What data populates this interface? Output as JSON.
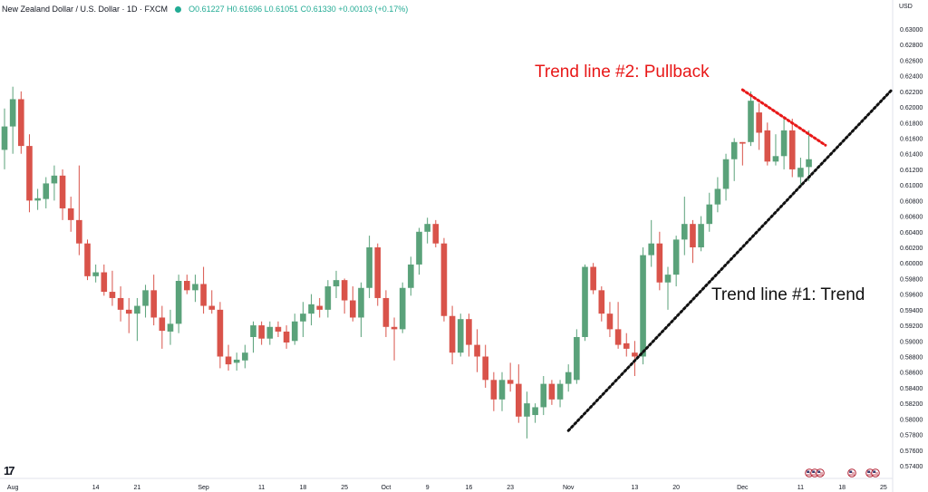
{
  "header": {
    "symbol": "New Zealand Dollar / U.S. Dollar · 1D · FXCM",
    "ohlc": "O0.61227 H0.61696 L0.61051 C0.61330 +0.00103 (+0.17%)"
  },
  "currency_label": "USD",
  "logo_text": "17",
  "colors": {
    "up": "#5aa27a",
    "down": "#d9534a",
    "trend_line_1": "#111111",
    "trend_line_2": "#e81818",
    "annotation_2": "#e81818",
    "annotation_1": "#111111"
  },
  "chart_data": {
    "type": "candlestick",
    "ylim": [
      0.573,
      0.631
    ],
    "y_ticks": [
      "0.63000",
      "0.62800",
      "0.62600",
      "0.62400",
      "0.62200",
      "0.62000",
      "0.61800",
      "0.61600",
      "0.61400",
      "0.61200",
      "0.61000",
      "0.60800",
      "0.60600",
      "0.60400",
      "0.60200",
      "0.60000",
      "0.59800",
      "0.59600",
      "0.59400",
      "0.59200",
      "0.59000",
      "0.58800",
      "0.58600",
      "0.58400",
      "0.58200",
      "0.58000",
      "0.57800",
      "0.57600",
      "0.57400"
    ],
    "x_ticks": [
      {
        "label": "Aug",
        "bar": 1
      },
      {
        "label": "14",
        "bar": 11
      },
      {
        "label": "21",
        "bar": 16
      },
      {
        "label": "Sep",
        "bar": 24
      },
      {
        "label": "11",
        "bar": 31
      },
      {
        "label": "18",
        "bar": 36
      },
      {
        "label": "25",
        "bar": 41
      },
      {
        "label": "Oct",
        "bar": 46
      },
      {
        "label": "9",
        "bar": 51
      },
      {
        "label": "16",
        "bar": 56
      },
      {
        "label": "23",
        "bar": 61
      },
      {
        "label": "Nov",
        "bar": 68
      },
      {
        "label": "13",
        "bar": 76
      },
      {
        "label": "20",
        "bar": 81
      },
      {
        "label": "Dec",
        "bar": 89
      },
      {
        "label": "11",
        "bar": 96
      },
      {
        "label": "18",
        "bar": 101
      },
      {
        "label": "25",
        "bar": 106
      }
    ],
    "candles": [
      [
        0.6145,
        0.6198,
        0.612,
        0.6175
      ],
      [
        0.6175,
        0.6226,
        0.614,
        0.621
      ],
      [
        0.621,
        0.622,
        0.614,
        0.615
      ],
      [
        0.615,
        0.6165,
        0.6065,
        0.608
      ],
      [
        0.608,
        0.6095,
        0.6068,
        0.6083
      ],
      [
        0.6082,
        0.611,
        0.607,
        0.6102
      ],
      [
        0.6102,
        0.6125,
        0.608,
        0.6112
      ],
      [
        0.6112,
        0.612,
        0.6055,
        0.607
      ],
      [
        0.607,
        0.6085,
        0.604,
        0.6055
      ],
      [
        0.6055,
        0.6125,
        0.601,
        0.6025
      ],
      [
        0.6025,
        0.603,
        0.5978,
        0.5983
      ],
      [
        0.5983,
        0.5998,
        0.5975,
        0.5988
      ],
      [
        0.5988,
        0.5998,
        0.5958,
        0.5963
      ],
      [
        0.5963,
        0.599,
        0.5945,
        0.5955
      ],
      [
        0.5955,
        0.597,
        0.5925,
        0.594
      ],
      [
        0.594,
        0.5955,
        0.591,
        0.5935
      ],
      [
        0.5935,
        0.5955,
        0.59,
        0.5945
      ],
      [
        0.5945,
        0.5972,
        0.593,
        0.5965
      ],
      [
        0.5965,
        0.5985,
        0.592,
        0.593
      ],
      [
        0.593,
        0.5945,
        0.589,
        0.5913
      ],
      [
        0.5912,
        0.594,
        0.5895,
        0.5922
      ],
      [
        0.5922,
        0.5985,
        0.591,
        0.5977
      ],
      [
        0.5977,
        0.5985,
        0.596,
        0.5965
      ],
      [
        0.5965,
        0.5985,
        0.595,
        0.5973
      ],
      [
        0.5973,
        0.5995,
        0.5935,
        0.5945
      ],
      [
        0.5945,
        0.5965,
        0.5935,
        0.594
      ],
      [
        0.594,
        0.595,
        0.5865,
        0.588
      ],
      [
        0.588,
        0.5895,
        0.5862,
        0.587
      ],
      [
        0.5872,
        0.5885,
        0.5862,
        0.5876
      ],
      [
        0.5875,
        0.5895,
        0.5865,
        0.5885
      ],
      [
        0.5905,
        0.5925,
        0.5885,
        0.592
      ],
      [
        0.592,
        0.5925,
        0.5895,
        0.5903
      ],
      [
        0.5903,
        0.5925,
        0.5895,
        0.5918
      ],
      [
        0.5918,
        0.5925,
        0.5905,
        0.5912
      ],
      [
        0.5912,
        0.592,
        0.589,
        0.5898
      ],
      [
        0.59,
        0.5935,
        0.5895,
        0.5925
      ],
      [
        0.5925,
        0.595,
        0.5905,
        0.5935
      ],
      [
        0.5935,
        0.596,
        0.592,
        0.5947
      ],
      [
        0.5945,
        0.5955,
        0.593,
        0.594
      ],
      [
        0.594,
        0.5978,
        0.593,
        0.597
      ],
      [
        0.597,
        0.599,
        0.5955,
        0.5978
      ],
      [
        0.5978,
        0.598,
        0.5935,
        0.5952
      ],
      [
        0.5952,
        0.597,
        0.5925,
        0.593
      ],
      [
        0.593,
        0.5975,
        0.5905,
        0.5968
      ],
      [
        0.5968,
        0.6035,
        0.5955,
        0.602
      ],
      [
        0.602,
        0.6025,
        0.5945,
        0.5955
      ],
      [
        0.5955,
        0.5965,
        0.5905,
        0.5918
      ],
      [
        0.5918,
        0.593,
        0.5875,
        0.5915
      ],
      [
        0.5915,
        0.5975,
        0.591,
        0.5968
      ],
      [
        0.5968,
        0.6008,
        0.5958,
        0.5998
      ],
      [
        0.5998,
        0.6045,
        0.5985,
        0.604
      ],
      [
        0.604,
        0.6058,
        0.6025,
        0.605
      ],
      [
        0.605,
        0.6055,
        0.602,
        0.6025
      ],
      [
        0.6025,
        0.6032,
        0.5925,
        0.5932
      ],
      [
        0.5932,
        0.5945,
        0.587,
        0.5885
      ],
      [
        0.5885,
        0.5935,
        0.588,
        0.5928
      ],
      [
        0.5928,
        0.5935,
        0.588,
        0.5895
      ],
      [
        0.5895,
        0.5915,
        0.586,
        0.588
      ],
      [
        0.588,
        0.5895,
        0.584,
        0.585
      ],
      [
        0.585,
        0.586,
        0.581,
        0.5825
      ],
      [
        0.5825,
        0.586,
        0.581,
        0.585
      ],
      [
        0.585,
        0.5872,
        0.5835,
        0.5845
      ],
      [
        0.5845,
        0.587,
        0.5795,
        0.5803
      ],
      [
        0.5803,
        0.5835,
        0.5775,
        0.582
      ],
      [
        0.5805,
        0.582,
        0.5795,
        0.5815
      ],
      [
        0.5815,
        0.5855,
        0.5805,
        0.5845
      ],
      [
        0.5845,
        0.585,
        0.5818,
        0.5825
      ],
      [
        0.5825,
        0.585,
        0.5815,
        0.5845
      ],
      [
        0.5845,
        0.587,
        0.5835,
        0.586
      ],
      [
        0.585,
        0.5915,
        0.5845,
        0.5905
      ],
      [
        0.5905,
        0.5998,
        0.59,
        0.5995
      ],
      [
        0.5995,
        0.6,
        0.596,
        0.5965
      ],
      [
        0.5965,
        0.597,
        0.5925,
        0.5935
      ],
      [
        0.5935,
        0.595,
        0.5905,
        0.5915
      ],
      [
        0.5915,
        0.595,
        0.589,
        0.5895
      ],
      [
        0.5897,
        0.591,
        0.588,
        0.589
      ],
      [
        0.5885,
        0.59,
        0.5855,
        0.588
      ],
      [
        0.588,
        0.602,
        0.587,
        0.601
      ],
      [
        0.601,
        0.6055,
        0.5995,
        0.6025
      ],
      [
        0.6025,
        0.604,
        0.5965,
        0.5975
      ],
      [
        0.5975,
        0.5995,
        0.594,
        0.5985
      ],
      [
        0.5985,
        0.6035,
        0.597,
        0.603
      ],
      [
        0.603,
        0.6085,
        0.601,
        0.605
      ],
      [
        0.605,
        0.6055,
        0.6,
        0.602
      ],
      [
        0.602,
        0.606,
        0.6015,
        0.605
      ],
      [
        0.605,
        0.609,
        0.604,
        0.6075
      ],
      [
        0.6075,
        0.611,
        0.6065,
        0.6095
      ],
      [
        0.6095,
        0.614,
        0.608,
        0.6133
      ],
      [
        0.6133,
        0.616,
        0.6105,
        0.6155
      ],
      [
        0.6155,
        0.6155,
        0.6125,
        0.6153
      ],
      [
        0.6155,
        0.622,
        0.615,
        0.6208
      ],
      [
        0.6193,
        0.6205,
        0.6145,
        0.6167
      ],
      [
        0.617,
        0.618,
        0.6125,
        0.613
      ],
      [
        0.613,
        0.6165,
        0.6125,
        0.6137
      ],
      [
        0.6137,
        0.6185,
        0.612,
        0.617
      ],
      [
        0.617,
        0.6185,
        0.611,
        0.612
      ],
      [
        0.611,
        0.6135,
        0.61,
        0.6122
      ],
      [
        0.6123,
        0.617,
        0.6105,
        0.6133
      ]
    ],
    "annotations": [
      {
        "text": "Trend line #2: Pullback",
        "color": "#e81818"
      },
      {
        "text": "Trend line #1: Trend",
        "color": "#111111"
      }
    ],
    "trend_lines": [
      {
        "name": "Trend line #1",
        "from": {
          "bar": 68,
          "price": 0.5785
        },
        "to": {
          "bar": 107,
          "price": 0.6222
        }
      },
      {
        "name": "Trend line #2",
        "from": {
          "bar": 89,
          "price": 0.6222
        },
        "to": {
          "bar": 99,
          "price": 0.6151
        }
      }
    ],
    "flag_groups": [
      3,
      1,
      2
    ]
  }
}
